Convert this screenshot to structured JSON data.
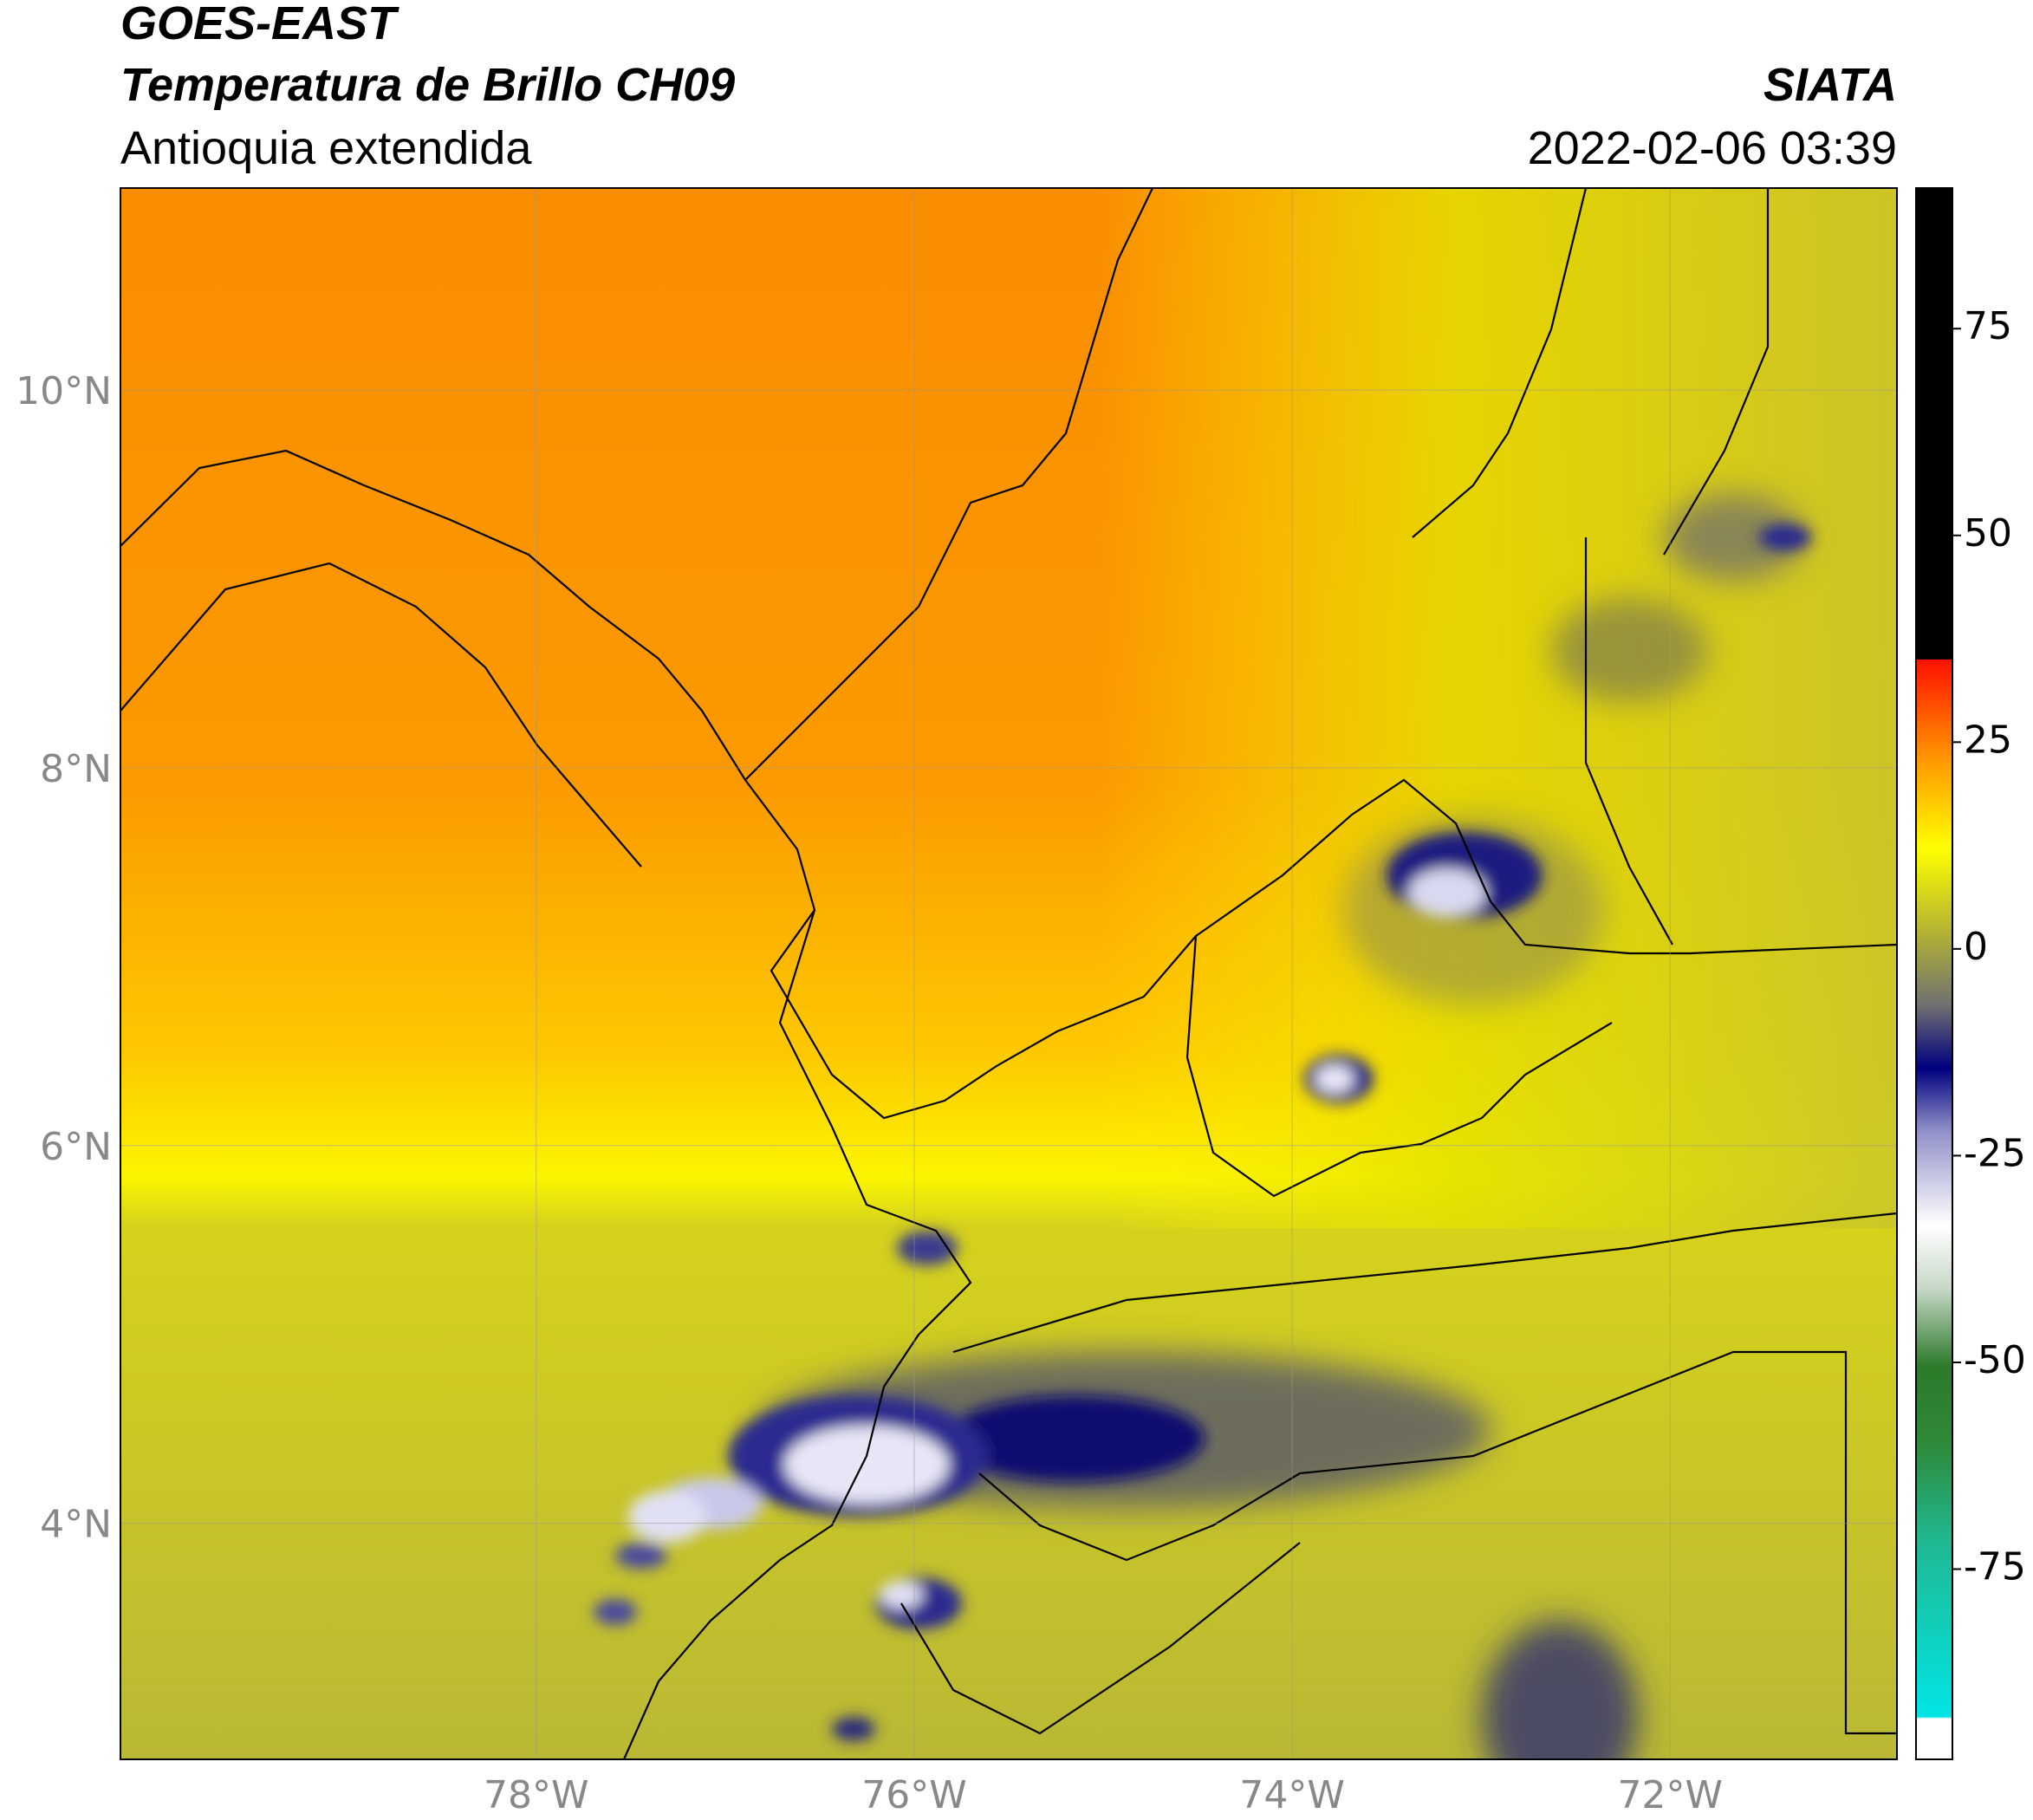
{
  "header": {
    "title": "GOES-EAST",
    "subtitle": "Temperatura de Brillo CH09",
    "region": "Antioquia extendida",
    "source": "SIATA",
    "datetime": "2022-02-06 03:39"
  },
  "map": {
    "xlim": [
      -80.2,
      -70.8
    ],
    "ylim": [
      2.75,
      11.07
    ],
    "xticks": [
      {
        "value": -78,
        "label": "78°W"
      },
      {
        "value": -76,
        "label": "76°W"
      },
      {
        "value": -74,
        "label": "74°W"
      },
      {
        "value": -72,
        "label": "72°W"
      }
    ],
    "yticks": [
      {
        "value": 4,
        "label": "4°N"
      },
      {
        "value": 6,
        "label": "6°N"
      },
      {
        "value": 8,
        "label": "8°N"
      },
      {
        "value": 10,
        "label": "10°N"
      }
    ]
  },
  "colorbar": {
    "lim": [
      -98,
      92
    ],
    "ticks": [
      75,
      50,
      25,
      0,
      -25,
      -50,
      -75
    ]
  }
}
